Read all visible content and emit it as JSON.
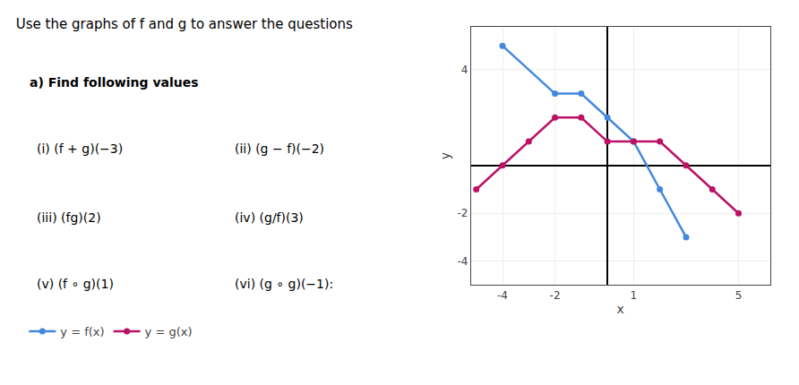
{
  "chart_data": {
    "type": "line",
    "title": "Use the graphs of f and g to answer the questions",
    "subtitle": "a) Find following values",
    "annotations": [
      "(i) (f + g)(−3)",
      "(ii) (g − f)(−2)",
      "(iii) (fg)(2)",
      "(iv) (g/f)(3)",
      "(v) (f ∘ g)(1)",
      "(vi) (g ∘ g)(−1):"
    ],
    "x_label": "x",
    "y_label": "y",
    "series": [
      {
        "name": "y = f(x)",
        "color": "#4488DD",
        "marker": "circle",
        "x": [
          -4,
          -2,
          -1,
          0,
          1,
          2,
          3
        ],
        "values": [
          5,
          3,
          3,
          2,
          1,
          -1,
          -3
        ]
      },
      {
        "name": "y = g(x)",
        "color": "#BB1166",
        "marker": "circle",
        "x": [
          -5,
          -4,
          -3,
          -2,
          -1,
          0,
          1,
          2,
          3,
          4,
          5
        ],
        "values": [
          -1,
          0,
          1,
          2,
          2,
          1,
          1,
          1,
          0,
          -1,
          -2
        ]
      }
    ],
    "xlim": [
      -5.2,
      6.2
    ],
    "ylim": [
      -5.0,
      5.8
    ],
    "xticks": [
      -4,
      -2,
      1,
      5
    ],
    "yticks": [
      -4,
      -2,
      4
    ],
    "grid": true,
    "legend": "bottom left"
  }
}
